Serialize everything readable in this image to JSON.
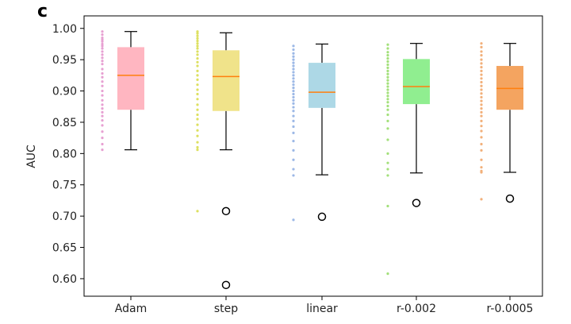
{
  "panel_label": "c",
  "chart_data": {
    "type": "box",
    "title": "",
    "xlabel": "",
    "ylabel": "AUC",
    "ylim": [
      0.572,
      1.02
    ],
    "yticks": [
      "1.00",
      "0.95",
      "0.90",
      "0.85",
      "0.80",
      "0.75",
      "0.70",
      "0.65",
      "0.60"
    ],
    "yticks_values": [
      1.0,
      0.95,
      0.9,
      0.85,
      0.8,
      0.75,
      0.7,
      0.65,
      0.6
    ],
    "categories": [
      "Adam",
      "step",
      "linear",
      "r-0.002",
      "r-0.0005"
    ],
    "series": [
      {
        "name": "Adam",
        "color": "#ffb6c1",
        "point_color": "#e7a0d2",
        "whisker_low": 0.806,
        "q1": 0.87,
        "median": 0.925,
        "q3": 0.97,
        "whisker_high": 0.995,
        "outliers": [],
        "points": [
          0.995,
          0.99,
          0.985,
          0.982,
          0.979,
          0.975,
          0.972,
          0.968,
          0.963,
          0.958,
          0.953,
          0.948,
          0.943,
          0.935,
          0.928,
          0.922,
          0.915,
          0.908,
          0.9,
          0.893,
          0.885,
          0.878,
          0.872,
          0.866,
          0.86,
          0.853,
          0.845,
          0.835,
          0.825,
          0.815,
          0.806
        ]
      },
      {
        "name": "step",
        "color": "#f0e38a",
        "point_color": "#dde060",
        "whisker_low": 0.806,
        "q1": 0.868,
        "median": 0.923,
        "q3": 0.965,
        "whisker_high": 0.993,
        "outliers": [
          0.708,
          0.59
        ],
        "points": [
          0.995,
          0.992,
          0.988,
          0.984,
          0.98,
          0.976,
          0.972,
          0.968,
          0.963,
          0.958,
          0.952,
          0.946,
          0.94,
          0.932,
          0.925,
          0.918,
          0.91,
          0.902,
          0.895,
          0.887,
          0.878,
          0.87,
          0.862,
          0.855,
          0.846,
          0.837,
          0.828,
          0.818,
          0.81,
          0.806,
          0.708
        ]
      },
      {
        "name": "linear",
        "color": "#add8e6",
        "point_color": "#9cb8e6",
        "whisker_low": 0.766,
        "q1": 0.873,
        "median": 0.898,
        "q3": 0.945,
        "whisker_high": 0.975,
        "outliers": [
          0.699
        ],
        "points": [
          0.972,
          0.966,
          0.96,
          0.955,
          0.95,
          0.945,
          0.94,
          0.935,
          0.93,
          0.925,
          0.92,
          0.915,
          0.91,
          0.905,
          0.9,
          0.895,
          0.89,
          0.885,
          0.88,
          0.874,
          0.868,
          0.86,
          0.852,
          0.843,
          0.833,
          0.82,
          0.805,
          0.79,
          0.775,
          0.765,
          0.694
        ]
      },
      {
        "name": "r-0.002",
        "color": "#90ee90",
        "point_color": "#a3e07a",
        "whisker_low": 0.769,
        "q1": 0.879,
        "median": 0.907,
        "q3": 0.951,
        "whisker_high": 0.976,
        "outliers": [
          0.721
        ],
        "points": [
          0.974,
          0.968,
          0.962,
          0.957,
          0.952,
          0.947,
          0.942,
          0.937,
          0.932,
          0.927,
          0.922,
          0.917,
          0.912,
          0.907,
          0.902,
          0.897,
          0.892,
          0.887,
          0.882,
          0.876,
          0.87,
          0.862,
          0.852,
          0.84,
          0.822,
          0.8,
          0.785,
          0.775,
          0.765,
          0.716,
          0.608
        ]
      },
      {
        "name": "r-0.0005",
        "color": "#f4a460",
        "point_color": "#f2b07a",
        "whisker_low": 0.77,
        "q1": 0.87,
        "median": 0.904,
        "q3": 0.94,
        "whisker_high": 0.976,
        "outliers": [
          0.728
        ],
        "points": [
          0.976,
          0.97,
          0.963,
          0.957,
          0.95,
          0.944,
          0.938,
          0.932,
          0.926,
          0.92,
          0.914,
          0.908,
          0.902,
          0.896,
          0.89,
          0.884,
          0.878,
          0.872,
          0.866,
          0.86,
          0.852,
          0.844,
          0.836,
          0.826,
          0.815,
          0.805,
          0.79,
          0.778,
          0.772,
          0.77,
          0.727
        ]
      }
    ]
  }
}
